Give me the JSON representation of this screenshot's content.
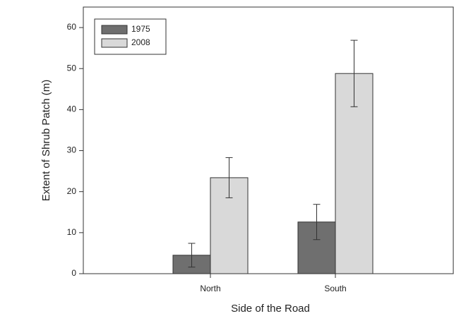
{
  "chart_data": {
    "type": "bar",
    "x_label": "Side of the Road",
    "y_label": "Extent of Shrub Patch (m)",
    "categories": [
      "North",
      "South"
    ],
    "series": [
      {
        "name": "1975",
        "color": "#6f6f6f",
        "values": [
          4.5,
          12.6
        ],
        "errors": [
          2.9,
          4.3
        ]
      },
      {
        "name": "2008",
        "color": "#d9d9d9",
        "values": [
          23.4,
          48.8
        ],
        "errors": [
          4.9,
          8.1
        ]
      }
    ],
    "ylim": [
      0,
      65
    ],
    "yticks": [
      0,
      10,
      20,
      30,
      40,
      50,
      60
    ],
    "grid": false,
    "legend": "upper left"
  }
}
